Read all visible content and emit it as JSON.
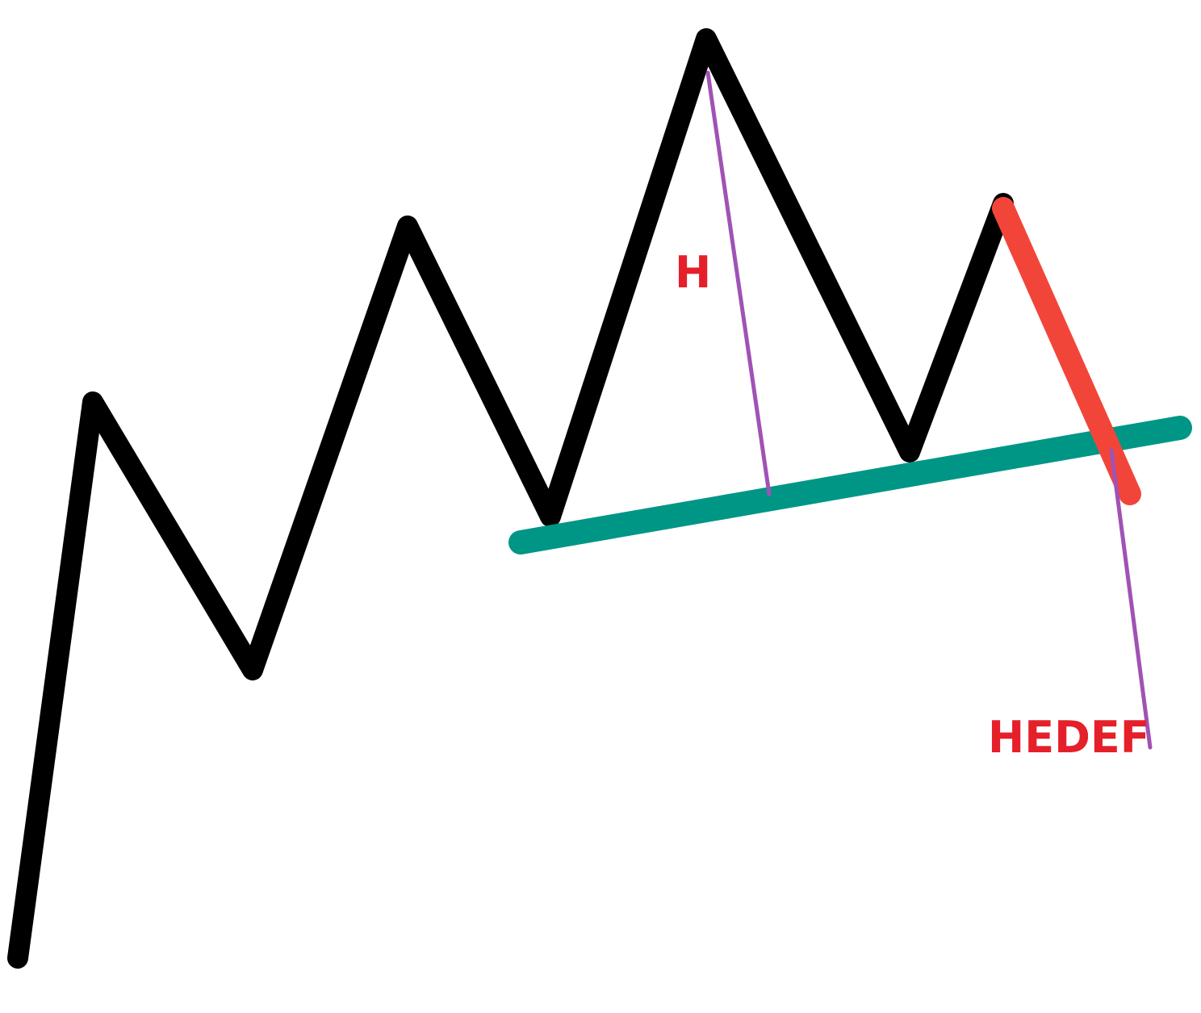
{
  "labels": {
    "height": "H",
    "target": "HEDEF"
  },
  "colors": {
    "price_line": "#000000",
    "neckline": "#009685",
    "breakout": "#f2453a",
    "measure": "#a052b5",
    "label_text": "#e5202a",
    "background": "#ffffff"
  }
}
